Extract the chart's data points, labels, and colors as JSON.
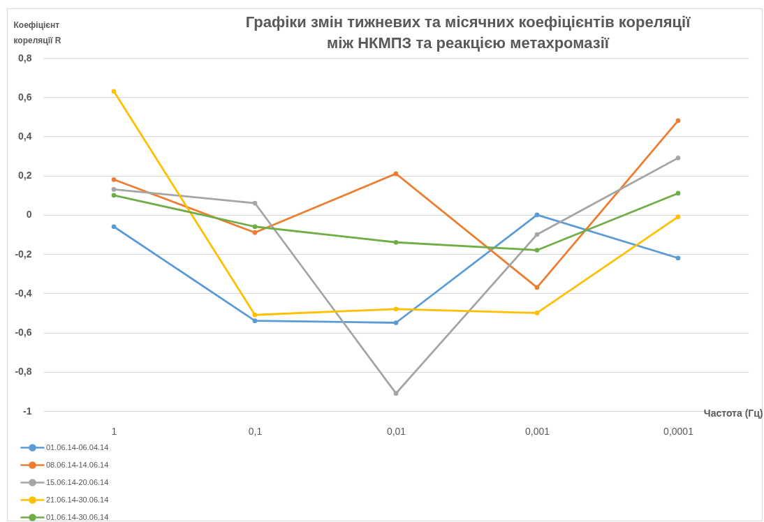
{
  "chart_data": {
    "type": "line",
    "title": "Графіки змін тижневих та місячних коефіцієнтів кореляції між НКМПЗ та реакцією метахромазії",
    "ylabel": "Коефіцієнт кореляції R",
    "xlabel": "Частота (Гц)",
    "categories": [
      "1",
      "0,1",
      "0,01",
      "0,001",
      "0,0001"
    ],
    "series": [
      {
        "name": "01.06.14-06.04.14",
        "color": "#5b9bd5",
        "values": [
          -0.06,
          -0.54,
          -0.55,
          0.0,
          -0.22
        ]
      },
      {
        "name": "08.06.14-14.06.14",
        "color": "#ed7d31",
        "values": [
          0.18,
          -0.09,
          0.21,
          -0.37,
          0.48
        ]
      },
      {
        "name": "15.06.14-20.06.14",
        "color": "#a5a5a5",
        "values": [
          0.13,
          0.06,
          -0.91,
          -0.1,
          0.29
        ]
      },
      {
        "name": "21.06.14-30.06.14",
        "color": "#ffc000",
        "values": [
          0.63,
          -0.51,
          -0.48,
          -0.5,
          -0.01
        ]
      },
      {
        "name": "01.06.14-30.06.14",
        "color": "#70ad47",
        "values": [
          0.1,
          -0.06,
          -0.14,
          -0.18,
          0.11
        ]
      }
    ],
    "ylim": [
      -1,
      0.8
    ],
    "yticks": [
      -1,
      {
        "value": -0.8,
        "label": "-0,8"
      },
      {
        "value": -0.6,
        "label": "-0,6"
      },
      {
        "value": -0.4,
        "label": "-0,4"
      },
      {
        "value": -0.2,
        "label": "-0,2"
      },
      0,
      {
        "value": 0.2,
        "label": "0,2"
      },
      {
        "value": 0.4,
        "label": "0,4"
      },
      {
        "value": 0.6,
        "label": "0,6"
      },
      {
        "value": 0.8,
        "label": "0,8"
      }
    ],
    "grid": "y",
    "legend": "bottom left",
    "marker": "circle",
    "line_style": "solid"
  }
}
